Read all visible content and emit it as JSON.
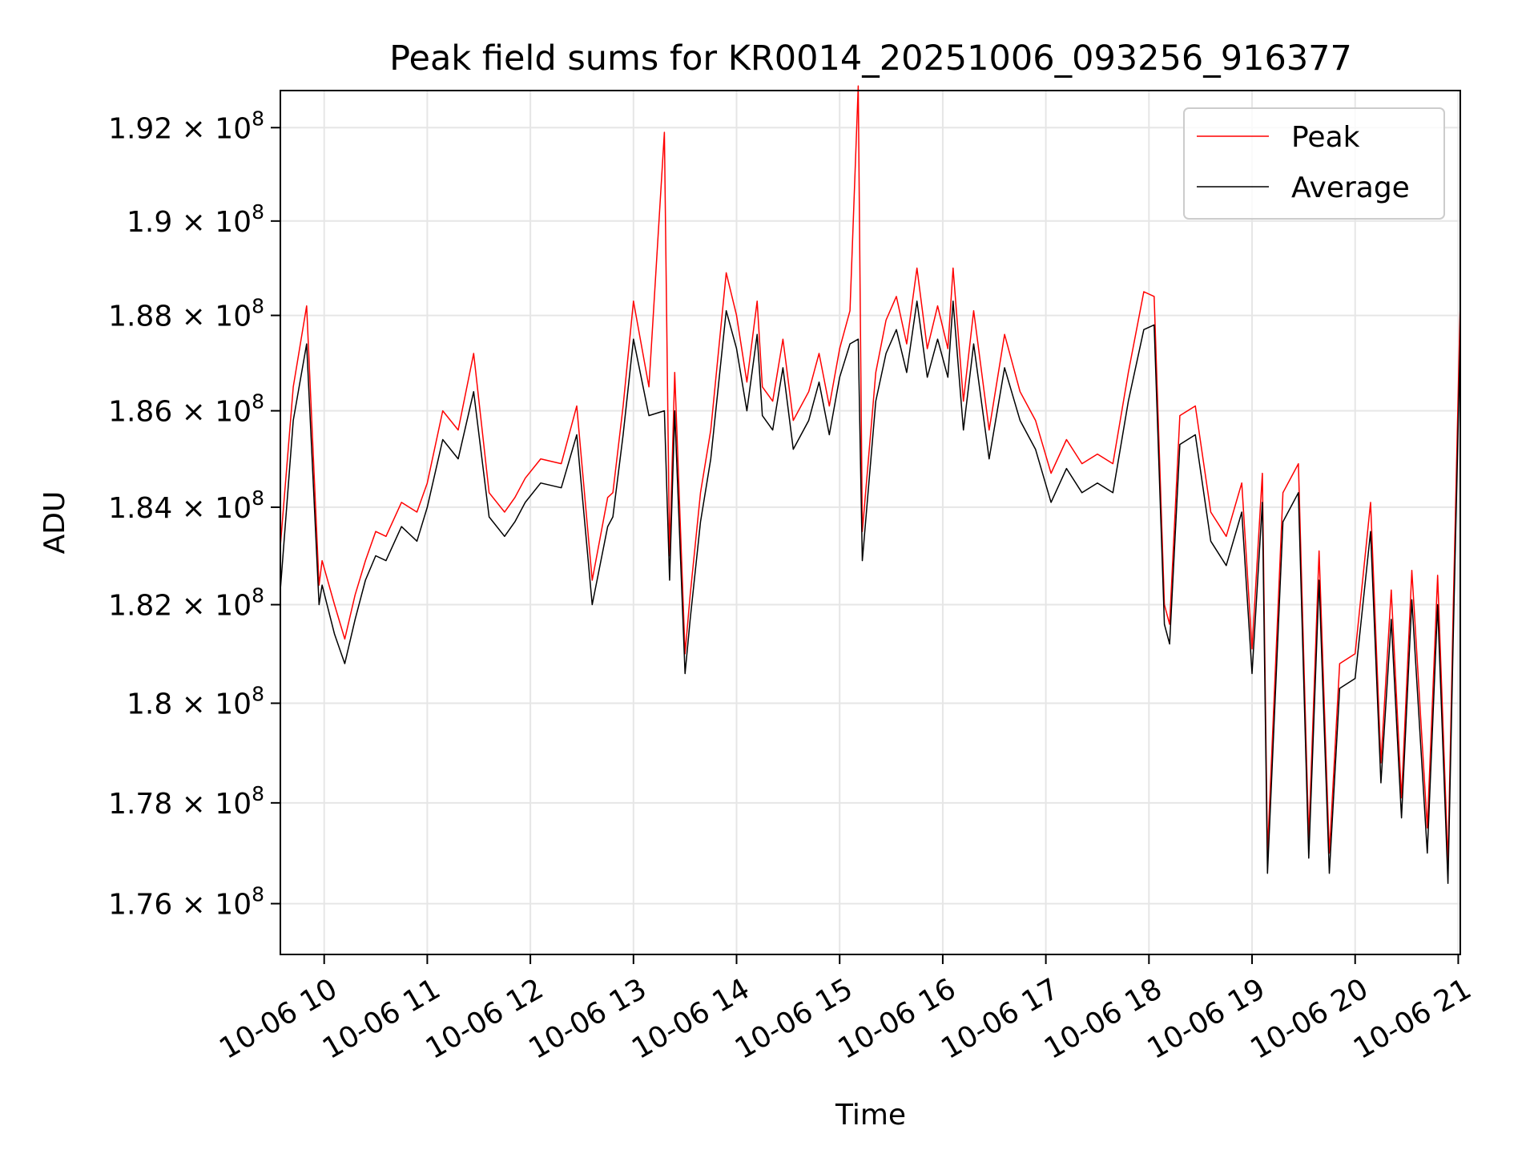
{
  "chart_data": {
    "type": "line",
    "title": "Peak field sums for KR0014_20251006_093256_916377",
    "xlabel": "Time",
    "ylabel": "ADU",
    "x_unit": "hours on 2025-10-06",
    "xlim": [
      9.575,
      21.02
    ],
    "ylim": [
      175000000,
      192800000
    ],
    "y_scale": "log",
    "grid": true,
    "legend_position": "top-right",
    "x_ticks": [
      {
        "value": 10,
        "label": "10-06 10"
      },
      {
        "value": 11,
        "label": "10-06 11"
      },
      {
        "value": 12,
        "label": "10-06 12"
      },
      {
        "value": 13,
        "label": "10-06 13"
      },
      {
        "value": 14,
        "label": "10-06 14"
      },
      {
        "value": 15,
        "label": "10-06 15"
      },
      {
        "value": 16,
        "label": "10-06 16"
      },
      {
        "value": 17,
        "label": "10-06 17"
      },
      {
        "value": 18,
        "label": "10-06 18"
      },
      {
        "value": 19,
        "label": "10-06 19"
      },
      {
        "value": 20,
        "label": "10-06 20"
      },
      {
        "value": 21,
        "label": "10-06 21"
      }
    ],
    "y_ticks": [
      {
        "value": 176000000,
        "mantissa": "1.76",
        "times": "×",
        "base": "10",
        "exp": "8"
      },
      {
        "value": 178000000,
        "mantissa": "1.78",
        "times": "×",
        "base": "10",
        "exp": "8"
      },
      {
        "value": 180000000,
        "mantissa": "1.8",
        "times": "×",
        "base": "10",
        "exp": "8"
      },
      {
        "value": 182000000,
        "mantissa": "1.82",
        "times": "×",
        "base": "10",
        "exp": "8"
      },
      {
        "value": 184000000,
        "mantissa": "1.84",
        "times": "×",
        "base": "10",
        "exp": "8"
      },
      {
        "value": 186000000,
        "mantissa": "1.86",
        "times": "×",
        "base": "10",
        "exp": "8"
      },
      {
        "value": 188000000,
        "mantissa": "1.88",
        "times": "×",
        "base": "10",
        "exp": "8"
      },
      {
        "value": 190000000,
        "mantissa": "1.9",
        "times": "×",
        "base": "10",
        "exp": "8"
      },
      {
        "value": 192000000,
        "mantissa": "1.92",
        "times": "×",
        "base": "10",
        "exp": "8"
      }
    ],
    "series": [
      {
        "name": "Peak",
        "color": "#ff0000",
        "x": [
          9.575,
          9.7,
          9.83,
          9.95,
          9.98,
          10.1,
          10.2,
          10.3,
          10.4,
          10.5,
          10.6,
          10.75,
          10.9,
          11.0,
          11.15,
          11.3,
          11.45,
          11.6,
          11.75,
          11.85,
          11.95,
          12.1,
          12.3,
          12.45,
          12.6,
          12.75,
          12.8,
          12.9,
          13.0,
          13.15,
          13.3,
          13.35,
          13.4,
          13.5,
          13.55,
          13.65,
          13.75,
          13.9,
          14.0,
          14.1,
          14.2,
          14.25,
          14.35,
          14.45,
          14.55,
          14.7,
          14.8,
          14.9,
          15.0,
          15.1,
          15.18,
          15.22,
          15.35,
          15.45,
          15.55,
          15.65,
          15.75,
          15.85,
          15.95,
          16.05,
          16.1,
          16.2,
          16.3,
          16.45,
          16.6,
          16.75,
          16.9,
          17.05,
          17.2,
          17.35,
          17.5,
          17.65,
          17.8,
          17.95,
          18.05,
          18.15,
          18.2,
          18.3,
          18.45,
          18.6,
          18.75,
          18.9,
          19.0,
          19.1,
          19.15,
          19.3,
          19.45,
          19.55,
          19.65,
          19.75,
          19.85,
          20.0,
          20.15,
          20.25,
          20.35,
          20.45,
          20.55,
          20.7,
          20.8,
          20.9,
          20.95,
          21.02
        ],
        "y": [
          183200000,
          186500000,
          188200000,
          182400000,
          182900000,
          182000000,
          181300000,
          182200000,
          182900000,
          183500000,
          183400000,
          184100000,
          183900000,
          184500000,
          186000000,
          185600000,
          187200000,
          184300000,
          183900000,
          184200000,
          184600000,
          185000000,
          184900000,
          186100000,
          182500000,
          184200000,
          184300000,
          186100000,
          188300000,
          186500000,
          191900000,
          183000000,
          186800000,
          181000000,
          182200000,
          184300000,
          185600000,
          188900000,
          188000000,
          186600000,
          188300000,
          186500000,
          186200000,
          187500000,
          185800000,
          186400000,
          187200000,
          186100000,
          187300000,
          188100000,
          192900000,
          183500000,
          186800000,
          187900000,
          188400000,
          187400000,
          189000000,
          187300000,
          188200000,
          187300000,
          189000000,
          186200000,
          188100000,
          185600000,
          187600000,
          186400000,
          185800000,
          184700000,
          185400000,
          184900000,
          185100000,
          184900000,
          186800000,
          188500000,
          188400000,
          182000000,
          181600000,
          185900000,
          186100000,
          183900000,
          183400000,
          184500000,
          181100000,
          184700000,
          177000000,
          184300000,
          184900000,
          177300000,
          183100000,
          177000000,
          180800000,
          181000000,
          184100000,
          178800000,
          182300000,
          178100000,
          182700000,
          177500000,
          182600000,
          176800000,
          181800000,
          188300000
        ]
      },
      {
        "name": "Average",
        "color": "#000000",
        "x": [
          9.575,
          9.7,
          9.83,
          9.95,
          9.98,
          10.1,
          10.2,
          10.3,
          10.4,
          10.5,
          10.6,
          10.75,
          10.9,
          11.0,
          11.15,
          11.3,
          11.45,
          11.6,
          11.75,
          11.85,
          11.95,
          12.1,
          12.3,
          12.45,
          12.6,
          12.75,
          12.8,
          12.9,
          13.0,
          13.15,
          13.3,
          13.35,
          13.4,
          13.5,
          13.55,
          13.65,
          13.75,
          13.9,
          14.0,
          14.1,
          14.2,
          14.25,
          14.35,
          14.45,
          14.55,
          14.7,
          14.8,
          14.9,
          15.0,
          15.1,
          15.18,
          15.22,
          15.35,
          15.45,
          15.55,
          15.65,
          15.75,
          15.85,
          15.95,
          16.05,
          16.1,
          16.2,
          16.3,
          16.45,
          16.6,
          16.75,
          16.9,
          17.05,
          17.2,
          17.35,
          17.5,
          17.65,
          17.8,
          17.95,
          18.05,
          18.15,
          18.2,
          18.3,
          18.45,
          18.6,
          18.75,
          18.9,
          19.0,
          19.1,
          19.15,
          19.3,
          19.45,
          19.55,
          19.65,
          19.75,
          19.85,
          20.0,
          20.15,
          20.25,
          20.35,
          20.45,
          20.55,
          20.7,
          20.8,
          20.9,
          20.95,
          21.02
        ],
        "y": [
          182300000,
          185800000,
          187400000,
          182000000,
          182400000,
          181400000,
          180800000,
          181700000,
          182500000,
          183000000,
          182900000,
          183600000,
          183300000,
          184000000,
          185400000,
          185000000,
          186400000,
          183800000,
          183400000,
          183700000,
          184100000,
          184500000,
          184400000,
          185500000,
          182000000,
          183600000,
          183800000,
          185500000,
          187500000,
          185900000,
          186000000,
          182500000,
          186000000,
          180600000,
          181700000,
          183700000,
          185000000,
          188100000,
          187300000,
          186000000,
          187600000,
          185900000,
          185600000,
          186900000,
          185200000,
          185800000,
          186600000,
          185500000,
          186700000,
          187400000,
          187500000,
          182900000,
          186200000,
          187200000,
          187700000,
          186800000,
          188300000,
          186700000,
          187500000,
          186700000,
          188300000,
          185600000,
          187400000,
          185000000,
          186900000,
          185800000,
          185200000,
          184100000,
          184800000,
          184300000,
          184500000,
          184300000,
          186200000,
          187700000,
          187800000,
          181600000,
          181200000,
          185300000,
          185500000,
          183300000,
          182800000,
          183900000,
          180600000,
          184100000,
          176600000,
          183700000,
          184300000,
          176900000,
          182500000,
          176600000,
          180300000,
          180500000,
          183500000,
          178400000,
          181700000,
          177700000,
          182100000,
          177000000,
          182000000,
          176400000,
          181200000,
          187600000
        ]
      }
    ]
  }
}
